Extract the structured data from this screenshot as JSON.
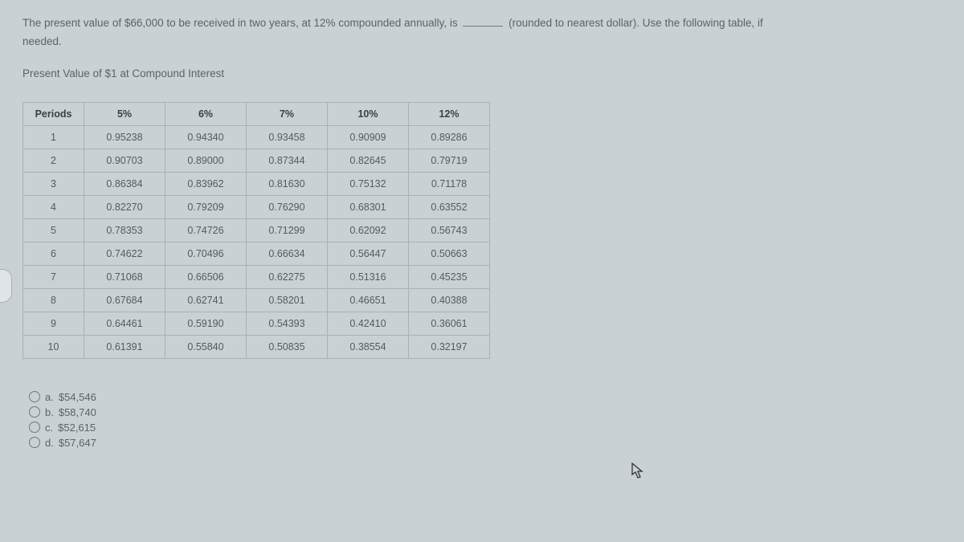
{
  "question": {
    "line1_a": "The present value of $66,000 to be received in two years, at 12% compounded annually, is",
    "line1_b": " (rounded to nearest dollar). Use the following table, if",
    "line2": "needed."
  },
  "table_title": "Present Value of $1 at Compound Interest",
  "table": {
    "headers": [
      "Periods",
      "5%",
      "6%",
      "7%",
      "10%",
      "12%"
    ],
    "rows": [
      [
        "1",
        "0.95238",
        "0.94340",
        "0.93458",
        "0.90909",
        "0.89286"
      ],
      [
        "2",
        "0.90703",
        "0.89000",
        "0.87344",
        "0.82645",
        "0.79719"
      ],
      [
        "3",
        "0.86384",
        "0.83962",
        "0.81630",
        "0.75132",
        "0.71178"
      ],
      [
        "4",
        "0.82270",
        "0.79209",
        "0.76290",
        "0.68301",
        "0.63552"
      ],
      [
        "5",
        "0.78353",
        "0.74726",
        "0.71299",
        "0.62092",
        "0.56743"
      ],
      [
        "6",
        "0.74622",
        "0.70496",
        "0.66634",
        "0.56447",
        "0.50663"
      ],
      [
        "7",
        "0.71068",
        "0.66506",
        "0.62275",
        "0.51316",
        "0.45235"
      ],
      [
        "8",
        "0.67684",
        "0.62741",
        "0.58201",
        "0.46651",
        "0.40388"
      ],
      [
        "9",
        "0.64461",
        "0.59190",
        "0.54393",
        "0.42410",
        "0.36061"
      ],
      [
        "10",
        "0.61391",
        "0.55840",
        "0.50835",
        "0.38554",
        "0.32197"
      ]
    ]
  },
  "options": [
    {
      "letter": "a.",
      "value": "$54,546"
    },
    {
      "letter": "b.",
      "value": "$58,740"
    },
    {
      "letter": "c.",
      "value": "$52,615"
    },
    {
      "letter": "d.",
      "value": "$57,647"
    }
  ],
  "styling": {
    "background_color": "#c9d1d4",
    "text_color": "#5c6369",
    "header_text_color": "#3a4046",
    "border_color": "#aab1b5",
    "font_family": "Verdana",
    "body_fontsize": 13,
    "cell_fontsize": 12.5,
    "col_widths": {
      "periods": 75,
      "data": 100
    }
  }
}
